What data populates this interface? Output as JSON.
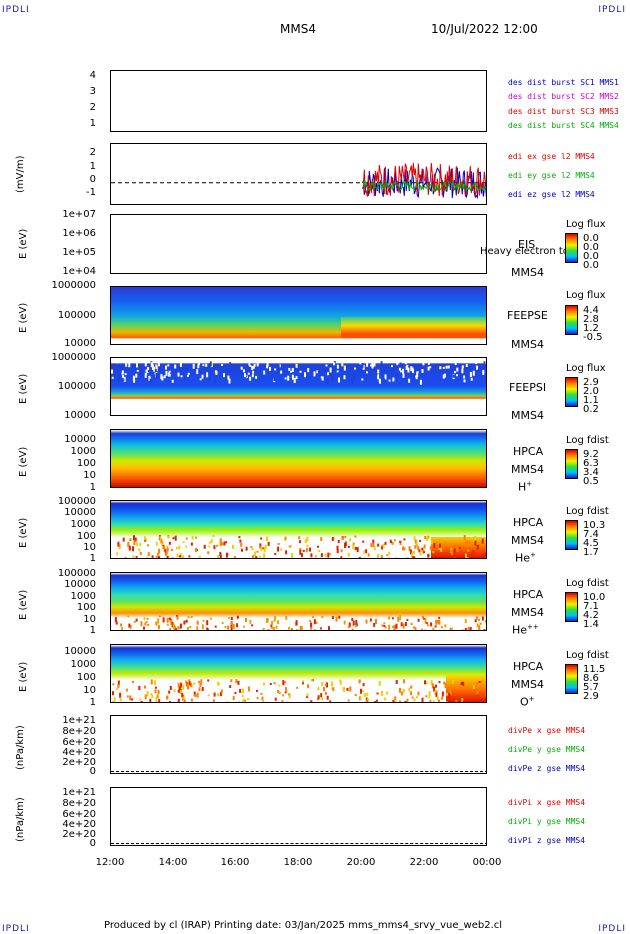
{
  "header": {
    "corner_left_top": "IPDLI",
    "corner_right_top": "IPDLI",
    "corner_left_bottom": "IPDLI",
    "corner_right_bottom": "IPDLI",
    "title": "MMS4",
    "datetime": "10/Jul/2022 12:00"
  },
  "footer": {
    "text": "Produced by cl (IRAP)   Printing date: 03/Jan/2025   mms_mms4_srvy_vue_web2.cl"
  },
  "x_axis": {
    "ticks": [
      "12:00",
      "14:00",
      "16:00",
      "18:00",
      "20:00",
      "22:00",
      "00:00"
    ]
  },
  "colors": {
    "blue": "#0000c0",
    "magenta": "#d000d0",
    "red": "#e00000",
    "green": "#00b000"
  },
  "panels": {
    "p1": {
      "y_ticks": [
        "4",
        "3",
        "2",
        "1"
      ],
      "legend": [
        "des dist burst SC1 MMS1",
        "des dist burst SC2 MMS2",
        "des dist burst SC3 MMS3",
        "des dist burst SC4 MMS4"
      ]
    },
    "p2": {
      "ylabel": "(mV/m)",
      "y_ticks": [
        "2",
        "1",
        "0",
        "-1"
      ],
      "legend": [
        "edi ex gse l2 MMS4",
        "edi ey gse l2 MMS4",
        "edi ez gse l2 MMS4"
      ]
    },
    "p3": {
      "ylabel": "E (eV)",
      "y_ticks": [
        "1e+07",
        "1e+06",
        "1e+05",
        "1e+04"
      ],
      "side": [
        "EIS",
        "MMS4"
      ],
      "overlay": "Heavy electron to",
      "cb_title": "Log flux",
      "cb_values": [
        "0.0",
        "0.0",
        "0.0",
        "0.0"
      ]
    },
    "p4": {
      "ylabel": "E (eV)",
      "y_ticks": [
        "1000000",
        "100000",
        "10000"
      ],
      "side": [
        "FEEPSE",
        "MMS4"
      ],
      "cb_title": "Log flux",
      "cb_values": [
        "4.4",
        "2.8",
        "1.2",
        "-0.5"
      ]
    },
    "p5": {
      "ylabel": "E (eV)",
      "y_ticks": [
        "1000000",
        "100000",
        "10000"
      ],
      "side": [
        "FEEPSI",
        "MMS4"
      ],
      "cb_title": "Log flux",
      "cb_values": [
        "2.9",
        "2.0",
        "1.1",
        "0.2"
      ]
    },
    "p6": {
      "ylabel": "E (eV)",
      "y_ticks": [
        "10000",
        "1000",
        "100",
        "10",
        "1"
      ],
      "side": [
        "HPCA",
        "MMS4"
      ],
      "species": "H",
      "species_sup": "+",
      "cb_title": "Log fdist",
      "cb_values": [
        "9.2",
        "6.3",
        "3.4",
        "0.5"
      ]
    },
    "p7": {
      "ylabel": "E (eV)",
      "y_ticks": [
        "100000",
        "10000",
        "1000",
        "100",
        "10",
        "1"
      ],
      "side": [
        "HPCA",
        "MMS4"
      ],
      "species": "He",
      "species_sup": "+",
      "cb_title": "Log fdist",
      "cb_values": [
        "10.3",
        "7.4",
        "4.5",
        "1.7"
      ]
    },
    "p8": {
      "ylabel": "E (eV)",
      "y_ticks": [
        "100000",
        "10000",
        "1000",
        "100",
        "10",
        "1"
      ],
      "side": [
        "HPCA",
        "MMS4"
      ],
      "species": "He",
      "species_sup": "++",
      "cb_title": "Log fdist",
      "cb_values": [
        "10.0",
        "7.1",
        "4.2",
        "1.4"
      ]
    },
    "p9": {
      "ylabel": "E (eV)",
      "y_ticks": [
        "10000",
        "1000",
        "100",
        "10",
        "1"
      ],
      "side": [
        "HPCA",
        "MMS4"
      ],
      "species": "O",
      "species_sup": "+",
      "cb_title": "Log fdist",
      "cb_values": [
        "11.5",
        "8.6",
        "5.7",
        "2.9"
      ]
    },
    "p10": {
      "ylabel": "(nPa/km)",
      "y_ticks": [
        "1e+21",
        "8e+20",
        "6e+20",
        "4e+20",
        "2e+20",
        "0"
      ],
      "legend": [
        "divPe x gse MMS4",
        "divPe y gse MMS4",
        "divPe z gse MMS4"
      ]
    },
    "p11": {
      "ylabel": "(nPa/km)",
      "y_ticks": [
        "1e+21",
        "8e+20",
        "6e+20",
        "4e+20",
        "2e+20",
        "0"
      ],
      "legend": [
        "divPi x gse MMS4",
        "divPi y gse MMS4",
        "divPi z gse MMS4"
      ]
    }
  },
  "chart_data": {
    "type": "heatmap",
    "x_range": [
      "12:00",
      "00:00"
    ],
    "x_ticks": [
      "12:00",
      "14:00",
      "16:00",
      "18:00",
      "20:00",
      "22:00",
      "00:00"
    ],
    "edi_field": {
      "ylim": [
        -1.5,
        2.5
      ],
      "start": "20:00",
      "end": "00:00",
      "series": [
        {
          "name": "edi ex gse l2 MMS4",
          "range": [
            -1,
            2
          ]
        },
        {
          "name": "edi ey gse l2 MMS4",
          "range": [
            -0.5,
            0.3
          ]
        },
        {
          "name": "edi ez gse l2 MMS4",
          "range": [
            -1,
            1
          ]
        }
      ]
    }
  }
}
